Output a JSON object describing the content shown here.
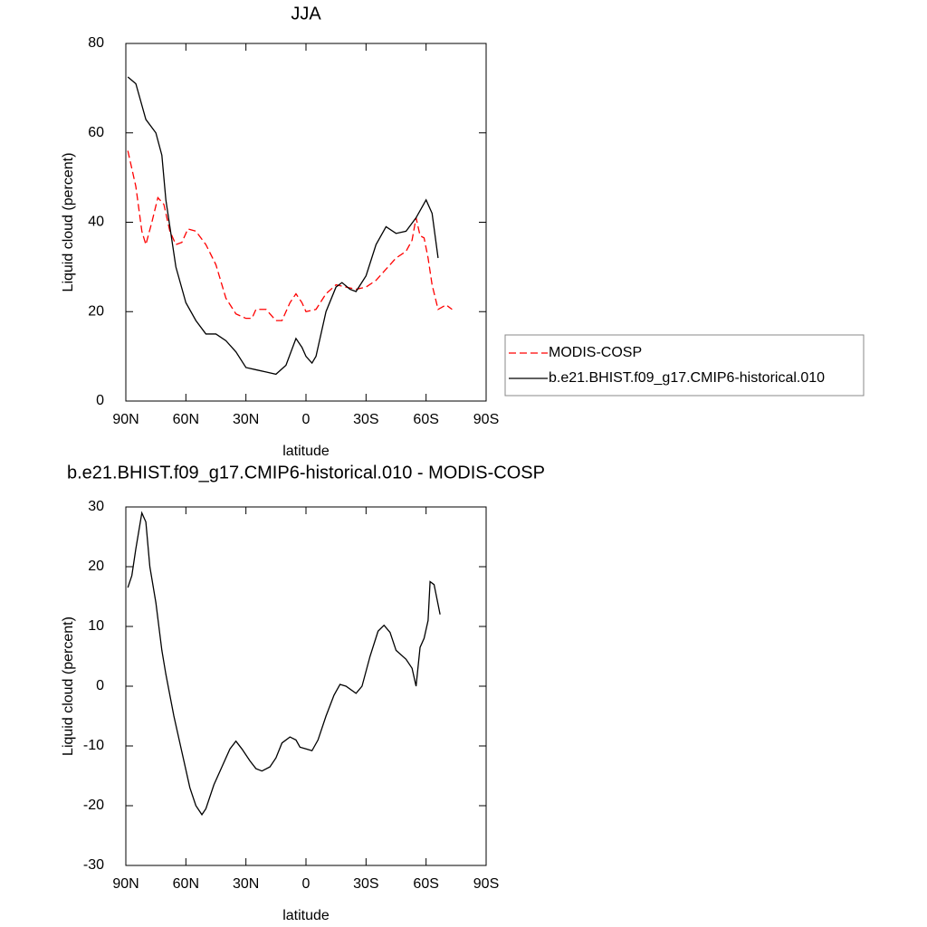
{
  "chart_data": [
    {
      "type": "line",
      "title": "JJA",
      "xlabel": "latitude",
      "ylabel": "Liquid cloud (percent)",
      "xlim": [
        90,
        -90
      ],
      "xticks": [
        {
          "value": 90,
          "label": "90N"
        },
        {
          "value": 60,
          "label": "60N"
        },
        {
          "value": 30,
          "label": "30N"
        },
        0,
        {
          "value": -30,
          "label": "30S"
        },
        {
          "value": -60,
          "label": "60S"
        },
        {
          "value": -90,
          "label": "90S"
        }
      ],
      "ylim": [
        0,
        80
      ],
      "yticks": [
        0,
        20,
        40,
        60,
        80
      ],
      "legend": "right",
      "series": [
        {
          "name": "MODIS-COSP",
          "color": "#ff0000",
          "dash": "dashed",
          "x": [
            89,
            85,
            82,
            80,
            77,
            74,
            71,
            68,
            65,
            62,
            59,
            55,
            50,
            45,
            40,
            35,
            30,
            27,
            25,
            20,
            15,
            12,
            8,
            5,
            2,
            0,
            -5,
            -10,
            -15,
            -20,
            -25,
            -30,
            -35,
            -40,
            -45,
            -50,
            -53,
            -55,
            -57,
            -59,
            -61,
            -63,
            -66,
            -70,
            -73
          ],
          "values": [
            56,
            48,
            38,
            35,
            40,
            45.5,
            44,
            38,
            35,
            35.5,
            38.5,
            38,
            35,
            30.5,
            23,
            19.5,
            18.5,
            18.5,
            20.5,
            20.5,
            18,
            18,
            22,
            24,
            22,
            20,
            20.5,
            24,
            26,
            25.5,
            25,
            25.5,
            27,
            29.5,
            32,
            33.5,
            36,
            41,
            37,
            36.5,
            32,
            26,
            20.5,
            21.5,
            20.5
          ]
        },
        {
          "name": "b.e21.BHIST.f09_g17.CMIP6-historical.010",
          "color": "#000000",
          "dash": "solid",
          "x": [
            89,
            85,
            80,
            75,
            72,
            70,
            65,
            60,
            55,
            50,
            45,
            40,
            35,
            30,
            25,
            20,
            15,
            10,
            5,
            2,
            0,
            -3,
            -5,
            -10,
            -15,
            -18,
            -22,
            -25,
            -30,
            -35,
            -40,
            -45,
            -50,
            -55,
            -60,
            -63,
            -66
          ],
          "values": [
            72.5,
            71,
            63,
            60,
            55,
            45,
            30,
            22,
            18,
            15,
            15,
            13.5,
            11,
            7.5,
            7,
            6.5,
            6,
            8,
            14,
            12,
            10,
            8.5,
            10,
            20,
            25.5,
            26.5,
            25,
            24.5,
            28,
            35,
            39,
            37.5,
            38,
            41,
            45,
            42,
            32
          ]
        }
      ]
    },
    {
      "type": "line",
      "title": "b.e21.BHIST.f09_g17.CMIP6-historical.010 - MODIS-COSP",
      "xlabel": "latitude",
      "ylabel": "Liquid cloud (percent)",
      "xlim": [
        90,
        -90
      ],
      "xticks": [
        {
          "value": 90,
          "label": "90N"
        },
        {
          "value": 60,
          "label": "60N"
        },
        {
          "value": 30,
          "label": "30N"
        },
        0,
        {
          "value": -30,
          "label": "30S"
        },
        {
          "value": -60,
          "label": "60S"
        },
        {
          "value": -90,
          "label": "90S"
        }
      ],
      "ylim": [
        -30,
        30
      ],
      "yticks": [
        -30,
        -20,
        -10,
        0,
        10,
        20,
        30
      ],
      "series": [
        {
          "color": "#000000",
          "dash": "solid",
          "x": [
            89,
            87,
            85,
            82,
            80,
            78,
            75,
            72,
            70,
            66,
            62,
            58,
            55,
            52,
            50,
            46,
            42,
            38,
            35,
            32,
            28,
            25,
            22,
            18,
            15,
            12,
            8,
            5,
            3,
            0,
            -3,
            -6,
            -10,
            -14,
            -17,
            -20,
            -25,
            -28,
            -32,
            -36,
            -39,
            -42,
            -45,
            -50,
            -53,
            -55,
            -57,
            -59,
            -61,
            -62,
            -64,
            -67
          ],
          "values": [
            16.5,
            18.5,
            23,
            29,
            27.5,
            20,
            14,
            6,
            2,
            -5,
            -11,
            -17,
            -20,
            -21.5,
            -20.5,
            -16.5,
            -13.5,
            -10.5,
            -9.2,
            -10.5,
            -12.5,
            -13.8,
            -14.2,
            -13.5,
            -12,
            -9.5,
            -8.5,
            -9,
            -10.2,
            -10.5,
            -10.8,
            -9,
            -5,
            -1.5,
            0.3,
            0,
            -1.2,
            0,
            5,
            9.2,
            10.2,
            9,
            6,
            4.5,
            3,
            0,
            6.5,
            8,
            11,
            17.5,
            17,
            12
          ]
        }
      ]
    }
  ]
}
